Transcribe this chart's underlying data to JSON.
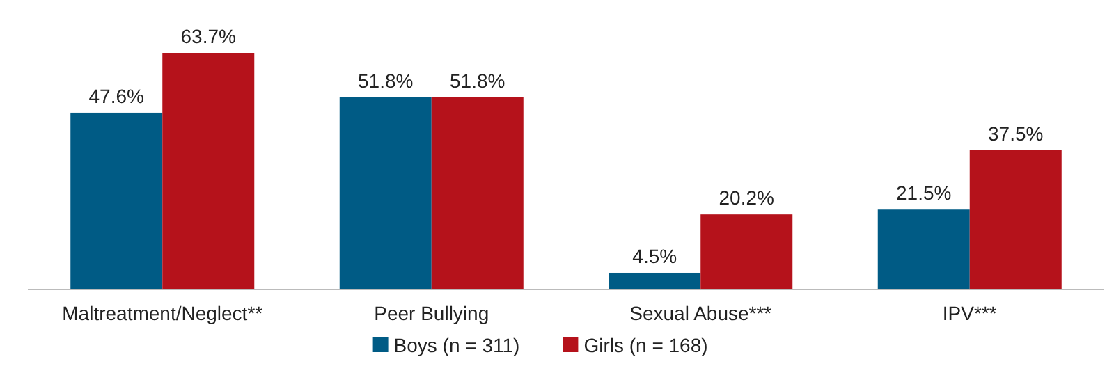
{
  "chart_data": {
    "type": "bar",
    "categories": [
      "Maltreatment/Neglect**",
      "Peer Bullying",
      "Sexual Abuse***",
      "IPV***"
    ],
    "series": [
      {
        "name": "Boys (n = 311)",
        "color": "#005b85",
        "values": [
          47.6,
          51.8,
          4.5,
          21.5
        ],
        "value_labels": [
          "47.6%",
          "51.8%",
          "4.5%",
          "21.5%"
        ]
      },
      {
        "name": "Girls (n = 168)",
        "color": "#b5121b",
        "values": [
          63.7,
          51.8,
          20.2,
          37.5
        ],
        "value_labels": [
          "63.7%",
          "51.8%",
          "20.2%",
          "37.5%"
        ]
      }
    ],
    "legend": "bottom",
    "grid": false
  }
}
